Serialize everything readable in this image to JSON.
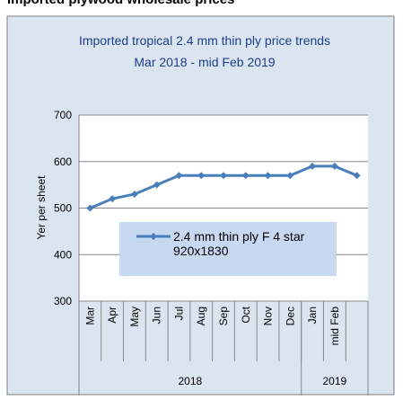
{
  "header": {
    "title": "Imported plywood wholesale prices"
  },
  "chart_data": {
    "type": "line",
    "title": "Imported tropical 2.4 mm thin ply price trends",
    "subtitle": "Mar 2018 -  mid Feb 2019",
    "y_label": "Yer per sheet",
    "category_groups": [
      {
        "label": "2018",
        "categories": [
          "Mar",
          "Apr",
          "May",
          "Jun",
          "Jul",
          "Aug",
          "Sep",
          "Oct",
          "Nov",
          "Dec"
        ]
      },
      {
        "label": "2019",
        "categories": [
          "Jan",
          "mid Feb",
          null
        ]
      }
    ],
    "series": [
      {
        "name": "2.4 mm thin ply F 4 star 920x1830",
        "color": "#4a7ebb",
        "values": [
          500,
          520,
          530,
          550,
          570,
          570,
          570,
          570,
          570,
          570,
          590,
          590,
          570
        ]
      }
    ],
    "ylim": [
      300,
      700
    ],
    "yticks": [
      300,
      400,
      500,
      600,
      700
    ],
    "grid": true
  }
}
